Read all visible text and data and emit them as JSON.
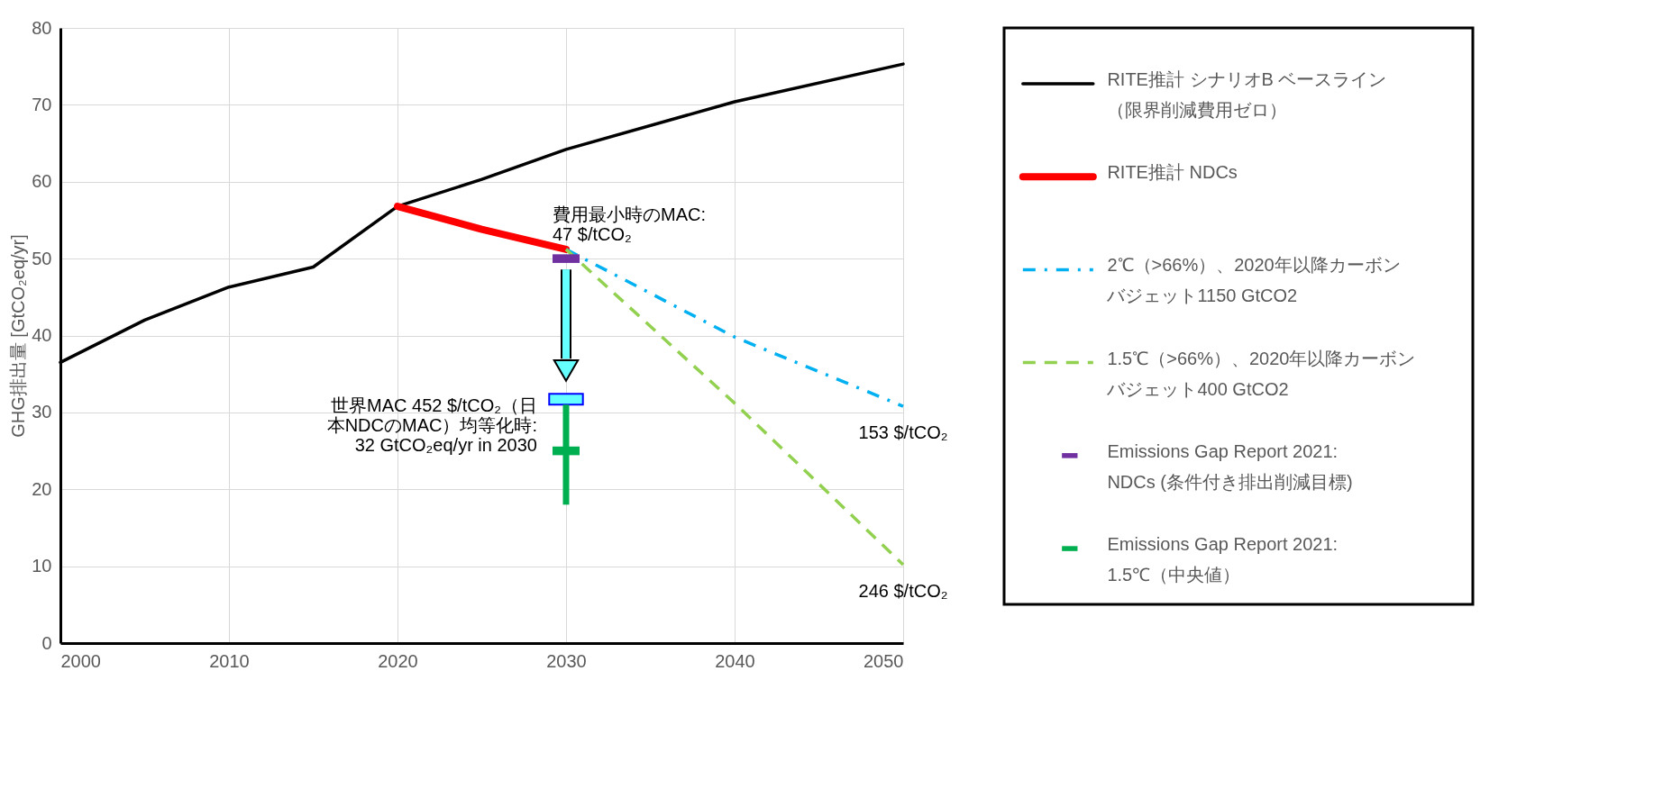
{
  "chart_data": {
    "type": "line",
    "ylabel": "GHG排出量 [GtCO₂eq/yr]",
    "xlim": [
      2000,
      2050
    ],
    "xticks": [
      2000,
      2010,
      2020,
      2030,
      2040,
      2050
    ],
    "ylim": [
      0,
      80
    ],
    "yticks": [
      0,
      10,
      20,
      30,
      40,
      50,
      60,
      70,
      80
    ],
    "grid": true,
    "legend": "right",
    "series": [
      {
        "name": "RITE推計 シナリオB ベースライン（限界削減費用ゼロ）",
        "line_style": "solid",
        "color": "#000000",
        "x": [
          2000,
          2005,
          2010,
          2015,
          2020,
          2025,
          2030,
          2040,
          2050
        ],
        "values": [
          36.5,
          42,
          46.3,
          48.9,
          56.8,
          60.3,
          64.2,
          70.4,
          75.3
        ]
      },
      {
        "name": "RITE推計 NDCs",
        "line_style": "solid",
        "color": "#ff0000",
        "x": [
          2020,
          2025,
          2030
        ],
        "values": [
          56.8,
          53.8,
          51.2
        ]
      },
      {
        "name": "2℃（>66%）、2020年以降カーボンバジェット1150 GtCO2",
        "line_style": "dashdot",
        "color": "#00b0f0",
        "x": [
          2030,
          2040,
          2050
        ],
        "values": [
          51.2,
          39.8,
          30.8
        ]
      },
      {
        "name": "1.5℃（>66%）、2020年以降カーボンバジェット400 GtCO2",
        "line_style": "dashed",
        "color": "#92d050",
        "x": [
          2030,
          2040,
          2050
        ],
        "values": [
          51.2,
          31.2,
          10.2
        ]
      },
      {
        "name": "Emissions Gap Report 2021:\nNDCs (条件付き排出削減目標)",
        "type": "scatter",
        "marker": "square",
        "color": "#7030a0",
        "x": [
          2030
        ],
        "values": [
          50
        ]
      },
      {
        "name": "Emissions Gap Report 2021:\n 1.5℃（中央値）",
        "type": "scatter",
        "marker": "square",
        "color": "#00b050",
        "x": [
          2030
        ],
        "values": [
          25
        ],
        "errors": [
          [
            18,
            31
          ]
        ]
      }
    ],
    "annotations": [
      "費用最小時のMAC:\n47 $/tCO₂",
      "世界MAC 452 $/tCO₂（日本NDCのMAC）均等化時:\n32 GtCO₂eq/yr in 2030",
      "153 $/tCO₂",
      "246 $/tCO₂"
    ]
  }
}
